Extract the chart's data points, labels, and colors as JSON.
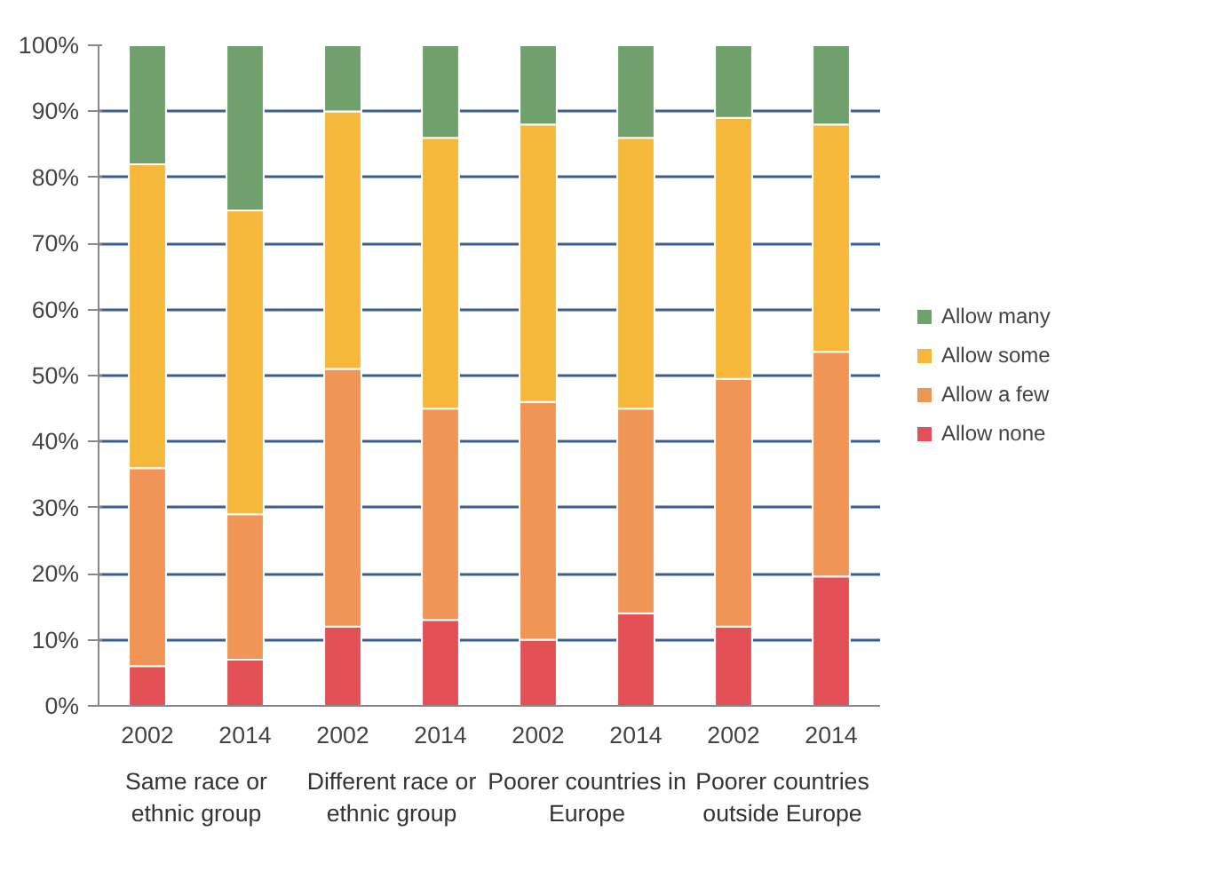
{
  "chart_data": {
    "type": "bar",
    "stacked": true,
    "categories": [
      "2002",
      "2014",
      "2002",
      "2014",
      "2002",
      "2014",
      "2002",
      "2014"
    ],
    "series": [
      {
        "name": "Allow none",
        "color": "#e35056",
        "values": [
          6,
          7,
          12,
          13,
          10,
          14,
          12,
          19.6
        ]
      },
      {
        "name": "Allow a few",
        "color": "#f09555",
        "values": [
          30,
          22,
          39,
          32,
          36,
          31,
          37.5,
          34
        ]
      },
      {
        "name": "Allow some",
        "color": "#f5b83a",
        "values": [
          46,
          46,
          39,
          41,
          42,
          41,
          39.5,
          34.4
        ]
      },
      {
        "name": "Allow many",
        "color": "#70a06c",
        "values": [
          18,
          25,
          10,
          14,
          12,
          14,
          11,
          12
        ]
      }
    ],
    "ylim": [
      0,
      100
    ],
    "yticks": [
      {
        "value": 0,
        "label": "0%"
      },
      {
        "value": 10,
        "label": "10%"
      },
      {
        "value": 20,
        "label": "20%"
      },
      {
        "value": 30,
        "label": "30%"
      },
      {
        "value": 40,
        "label": "40%"
      },
      {
        "value": 50,
        "label": "50%"
      },
      {
        "value": 60,
        "label": "60%"
      },
      {
        "value": 70,
        "label": "70%"
      },
      {
        "value": 80,
        "label": "80%"
      },
      {
        "value": 90,
        "label": "90%"
      },
      {
        "value": 100,
        "label": "100%"
      }
    ],
    "grid": "y",
    "legend": "right",
    "annotations": [
      "Same race or\nethnic group",
      "Different race or\nethnic group",
      "Poorer countries in\nEurope",
      "Poorer countries\noutside Europe"
    ]
  }
}
